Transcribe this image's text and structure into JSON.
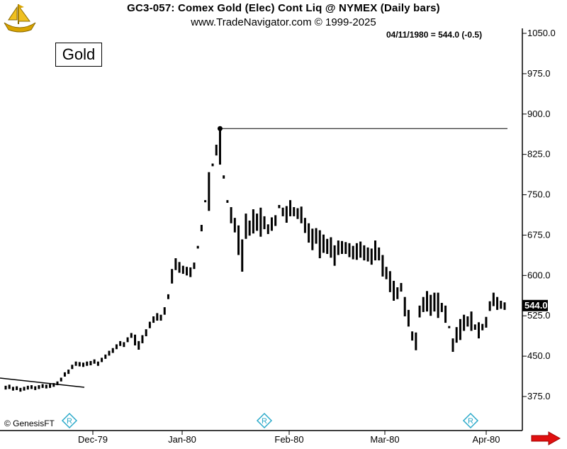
{
  "header": {
    "line1": "GC3-057:  Comex Gold (Elec) Cont Liq @ NYMEX  (Daily bars)",
    "line2": "www.TradeNavigator.com © 1999-2025",
    "readout": "04/11/1980 = 544.0 (-0.5)"
  },
  "label_box": "Gold",
  "copyright": "© GenesisFT",
  "icons": {
    "logo": "gold-ship-logo-icon",
    "arrow": "red-right-arrow-icon",
    "marker": "r-diamond-icon"
  },
  "colors": {
    "bars": "#000000",
    "arrow": "#e01010",
    "marker": "#2aa9c9",
    "logo": "#d9a400"
  },
  "chart_data": {
    "type": "ohlc",
    "title": "Comex Gold (Elec) Cont Liq @ NYMEX (Daily bars)",
    "ylim": [
      325,
      1050
    ],
    "y_ticks": [
      "1050.0",
      "975.0",
      "900.0",
      "825.0",
      "750.0",
      "675.0",
      "600.0",
      "525.0",
      "450.0",
      "375.0"
    ],
    "x_ticks": [
      "Dec-79",
      "Jan-80",
      "Feb-80",
      "Mar-80",
      "Apr-80"
    ],
    "last_price_label": "544.0",
    "peak_value": 873,
    "grid": false,
    "bars": [
      [
        395,
        388
      ],
      [
        397,
        389
      ],
      [
        393,
        386
      ],
      [
        394,
        387
      ],
      [
        391,
        384
      ],
      [
        393,
        386
      ],
      [
        395,
        388
      ],
      [
        396,
        389
      ],
      [
        394,
        387
      ],
      [
        396,
        389
      ],
      [
        398,
        391
      ],
      [
        397,
        390
      ],
      [
        398,
        391
      ],
      [
        400,
        393
      ],
      [
        403,
        396
      ],
      [
        410,
        403
      ],
      [
        420,
        412
      ],
      [
        425,
        417
      ],
      [
        434,
        426
      ],
      [
        440,
        432
      ],
      [
        439,
        431
      ],
      [
        438,
        430
      ],
      [
        440,
        432
      ],
      [
        441,
        433
      ],
      [
        444,
        436
      ],
      [
        440,
        432
      ],
      [
        447,
        439
      ],
      [
        453,
        445
      ],
      [
        460,
        451
      ],
      [
        465,
        456
      ],
      [
        472,
        463
      ],
      [
        478,
        469
      ],
      [
        476,
        467
      ],
      [
        485,
        476
      ],
      [
        493,
        484
      ],
      [
        490,
        470
      ],
      [
        478,
        462
      ],
      [
        489,
        474
      ],
      [
        500,
        487
      ],
      [
        514,
        502
      ],
      [
        524,
        512
      ],
      [
        530,
        516
      ],
      [
        527,
        516
      ],
      [
        541,
        527
      ],
      [
        565,
        556
      ],
      [
        612,
        585
      ],
      [
        632,
        610
      ],
      [
        625,
        605
      ],
      [
        618,
        603
      ],
      [
        616,
        600
      ],
      [
        615,
        597
      ],
      [
        624,
        612
      ],
      [
        655,
        650
      ],
      [
        694,
        682
      ],
      [
        740,
        736
      ],
      [
        792,
        720
      ],
      [
        808,
        803
      ],
      [
        843,
        823
      ],
      [
        873,
        806
      ],
      [
        786,
        780
      ],
      [
        740,
        735
      ],
      [
        727,
        697
      ],
      [
        707,
        680
      ],
      [
        693,
        638
      ],
      [
        667,
        607
      ],
      [
        715,
        668
      ],
      [
        702,
        674
      ],
      [
        723,
        678
      ],
      [
        715,
        683
      ],
      [
        726,
        672
      ],
      [
        710,
        686
      ],
      [
        695,
        677
      ],
      [
        708,
        683
      ],
      [
        712,
        692
      ],
      [
        731,
        725
      ],
      [
        726,
        710
      ],
      [
        729,
        698
      ],
      [
        740,
        710
      ],
      [
        727,
        710
      ],
      [
        725,
        705
      ],
      [
        728,
        697
      ],
      [
        707,
        679
      ],
      [
        697,
        661
      ],
      [
        687,
        647
      ],
      [
        688,
        659
      ],
      [
        684,
        632
      ],
      [
        676,
        642
      ],
      [
        668,
        640
      ],
      [
        671,
        633
      ],
      [
        656,
        618
      ],
      [
        665,
        638
      ],
      [
        664,
        640
      ],
      [
        662,
        640
      ],
      [
        660,
        634
      ],
      [
        655,
        630
      ],
      [
        660,
        629
      ],
      [
        663,
        633
      ],
      [
        656,
        628
      ],
      [
        652,
        626
      ],
      [
        650,
        620
      ],
      [
        665,
        628
      ],
      [
        652,
        628
      ],
      [
        638,
        598
      ],
      [
        616,
        593
      ],
      [
        608,
        569
      ],
      [
        590,
        553
      ],
      [
        578,
        556
      ],
      [
        586,
        570
      ],
      [
        560,
        524
      ],
      [
        536,
        505
      ],
      [
        496,
        479
      ],
      [
        494,
        461
      ],
      [
        544,
        522
      ],
      [
        560,
        532
      ],
      [
        571,
        533
      ],
      [
        564,
        525
      ],
      [
        568,
        533
      ],
      [
        568,
        521
      ],
      [
        549,
        532
      ],
      [
        544,
        512
      ],
      [
        506,
        502
      ],
      [
        483,
        458
      ],
      [
        504,
        475
      ],
      [
        519,
        480
      ],
      [
        527,
        497
      ],
      [
        524,
        505
      ],
      [
        533,
        497
      ],
      [
        509,
        499
      ],
      [
        513,
        483
      ],
      [
        510,
        498
      ],
      [
        523,
        503
      ],
      [
        552,
        534
      ],
      [
        568,
        543
      ],
      [
        560,
        536
      ],
      [
        553,
        538
      ],
      [
        550,
        536
      ]
    ]
  }
}
